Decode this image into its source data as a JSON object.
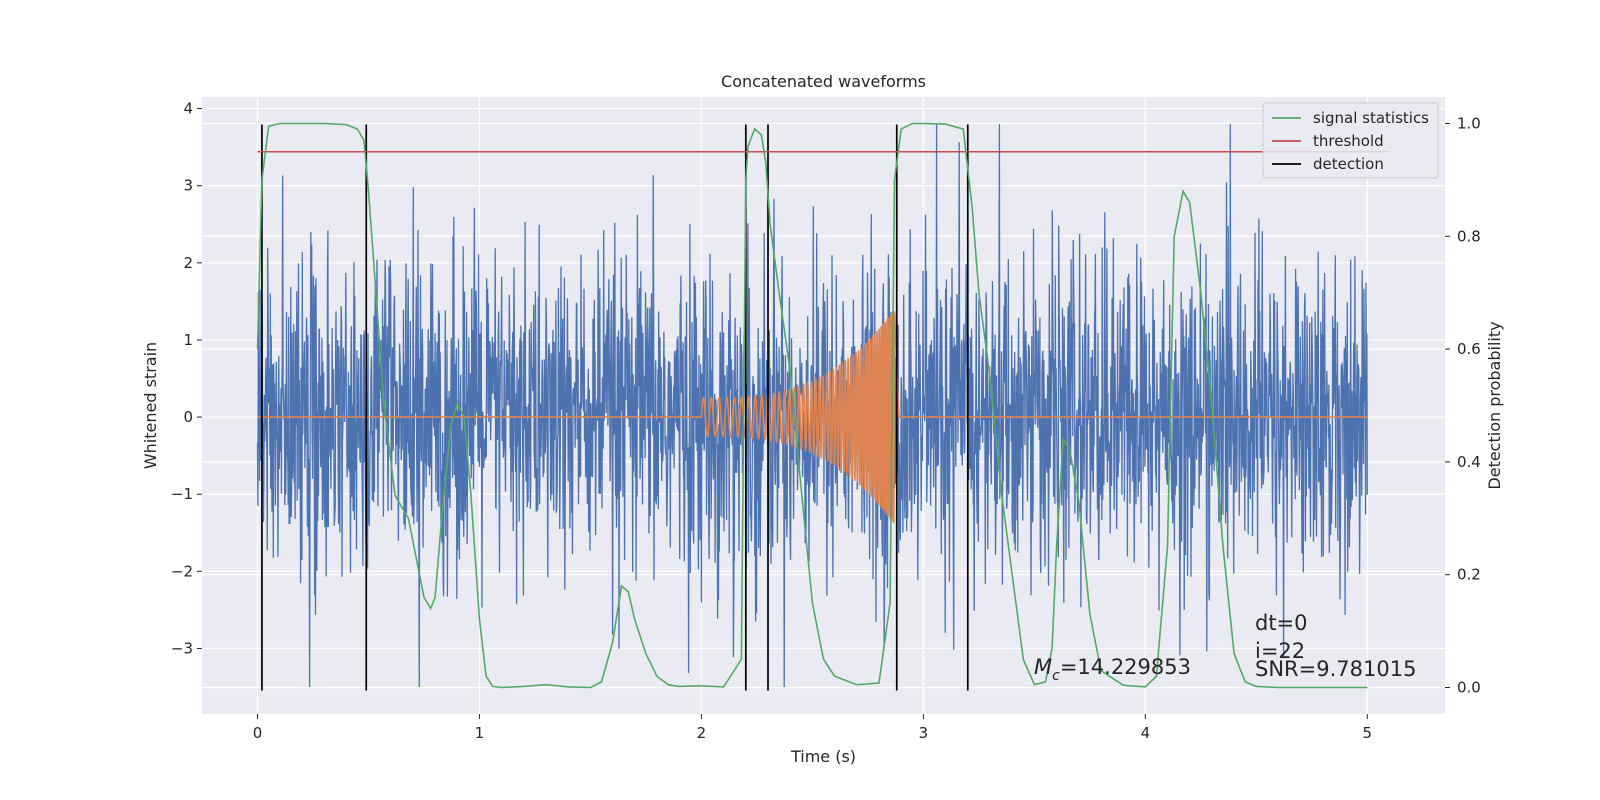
{
  "chart_data": {
    "type": "line",
    "title": "Concatenated waveforms",
    "xlabel": "Time (s)",
    "ylabel": "Whitened strain",
    "ylabel_right": "Detection probability",
    "xlim": [
      -0.25,
      5.35
    ],
    "ylim": [
      -3.85,
      4.15
    ],
    "ylim_right": [
      -0.047,
      1.047
    ],
    "x_ticks": [
      0,
      1,
      2,
      3,
      4,
      5
    ],
    "x_tick_labels": [
      "0",
      "1",
      "2",
      "3",
      "4",
      "5"
    ],
    "y_ticks": [
      -3,
      -2,
      -1,
      0,
      1,
      2,
      3,
      4
    ],
    "y_tick_labels": [
      "−3",
      "−2",
      "−1",
      "0",
      "1",
      "2",
      "3",
      "4"
    ],
    "y_right_ticks": [
      0,
      0.2,
      0.4,
      0.6,
      0.8,
      1.0
    ],
    "y_right_tick_labels": [
      "0.0",
      "0.2",
      "0.4",
      "0.6",
      "0.8",
      "1.0"
    ],
    "grid": true,
    "legend_position": "top-right",
    "legend": [
      {
        "label": "signal statistics",
        "color": "#55a868"
      },
      {
        "label": "threshold",
        "color": "#c44e52"
      },
      {
        "label": "detection",
        "color": "#000000"
      }
    ],
    "series": [
      {
        "key": "noise",
        "color": "#4c72b0",
        "axis": "left",
        "description_values": {
          "x_start": 0,
          "x_end": 5,
          "typical_amplitude": 1.0,
          "peak_max": 3.8,
          "peak_min": -3.5
        }
      },
      {
        "key": "template",
        "color": "#dd8452",
        "axis": "left",
        "description_values": {
          "x_start": 0,
          "x_end": 5,
          "chirp_start": 2.0,
          "chirp_end": 2.87,
          "amp_start": 0.25,
          "amp_end": 1.4
        }
      },
      {
        "name": "signal statistics",
        "color": "#55a868",
        "axis": "right",
        "x": [
          0.0,
          0.02,
          0.05,
          0.1,
          0.2,
          0.3,
          0.4,
          0.45,
          0.48,
          0.5,
          0.53,
          0.57,
          0.62,
          0.68,
          0.72,
          0.75,
          0.78,
          0.8,
          0.83,
          0.87,
          0.9,
          0.93,
          0.96,
          1.0,
          1.03,
          1.06,
          1.1,
          1.2,
          1.3,
          1.4,
          1.5,
          1.55,
          1.6,
          1.64,
          1.67,
          1.7,
          1.75,
          1.8,
          1.85,
          1.9,
          2.0,
          2.1,
          2.18,
          2.2,
          2.21,
          2.24,
          2.27,
          2.29,
          2.31,
          2.35,
          2.4,
          2.45,
          2.5,
          2.55,
          2.6,
          2.7,
          2.8,
          2.85,
          2.87,
          2.9,
          2.95,
          3.0,
          3.1,
          3.18,
          3.22,
          3.25,
          3.3,
          3.35,
          3.4,
          3.45,
          3.5,
          3.55,
          3.58,
          3.6,
          3.63,
          3.66,
          3.7,
          3.75,
          3.8,
          3.9,
          4.0,
          4.05,
          4.1,
          4.13,
          4.17,
          4.2,
          4.25,
          4.3,
          4.35,
          4.4,
          4.45,
          4.5,
          4.6,
          4.8,
          5.0
        ],
        "values": [
          0.6,
          0.9,
          0.995,
          1.0,
          1.0,
          1.0,
          0.998,
          0.99,
          0.97,
          0.88,
          0.72,
          0.5,
          0.34,
          0.3,
          0.22,
          0.16,
          0.14,
          0.16,
          0.3,
          0.46,
          0.505,
          0.48,
          0.35,
          0.12,
          0.02,
          0.002,
          0.0,
          0.002,
          0.005,
          0.001,
          0.0,
          0.01,
          0.08,
          0.18,
          0.17,
          0.12,
          0.06,
          0.02,
          0.005,
          0.002,
          0.003,
          0.001,
          0.05,
          0.9,
          0.96,
          0.99,
          0.98,
          0.93,
          0.82,
          0.7,
          0.56,
          0.35,
          0.15,
          0.05,
          0.02,
          0.005,
          0.008,
          0.15,
          0.9,
          0.99,
          1.0,
          1.0,
          0.999,
          0.99,
          0.85,
          0.7,
          0.55,
          0.35,
          0.2,
          0.05,
          0.005,
          0.01,
          0.07,
          0.25,
          0.44,
          0.42,
          0.33,
          0.13,
          0.03,
          0.004,
          0.001,
          0.02,
          0.25,
          0.8,
          0.88,
          0.86,
          0.7,
          0.5,
          0.25,
          0.06,
          0.01,
          0.002,
          0.0,
          0.0,
          0.0
        ]
      },
      {
        "name": "threshold",
        "color": "#c44e52",
        "axis": "right",
        "x": [
          0,
          5.1
        ],
        "values": [
          0.95,
          0.95
        ]
      }
    ],
    "detections": [
      0.02,
      0.49,
      2.2,
      2.3,
      2.88,
      3.2
    ],
    "annotations": {
      "mc_symbol": "M",
      "mc_subscript": "c",
      "mc_value": "=14.229853",
      "dt": "dt=0",
      "i": "i=22",
      "snr": "SNR=9.781015"
    },
    "colors": {
      "plot_background": "#eaeaf2",
      "grid": "#ffffff",
      "text": "#262626"
    }
  }
}
